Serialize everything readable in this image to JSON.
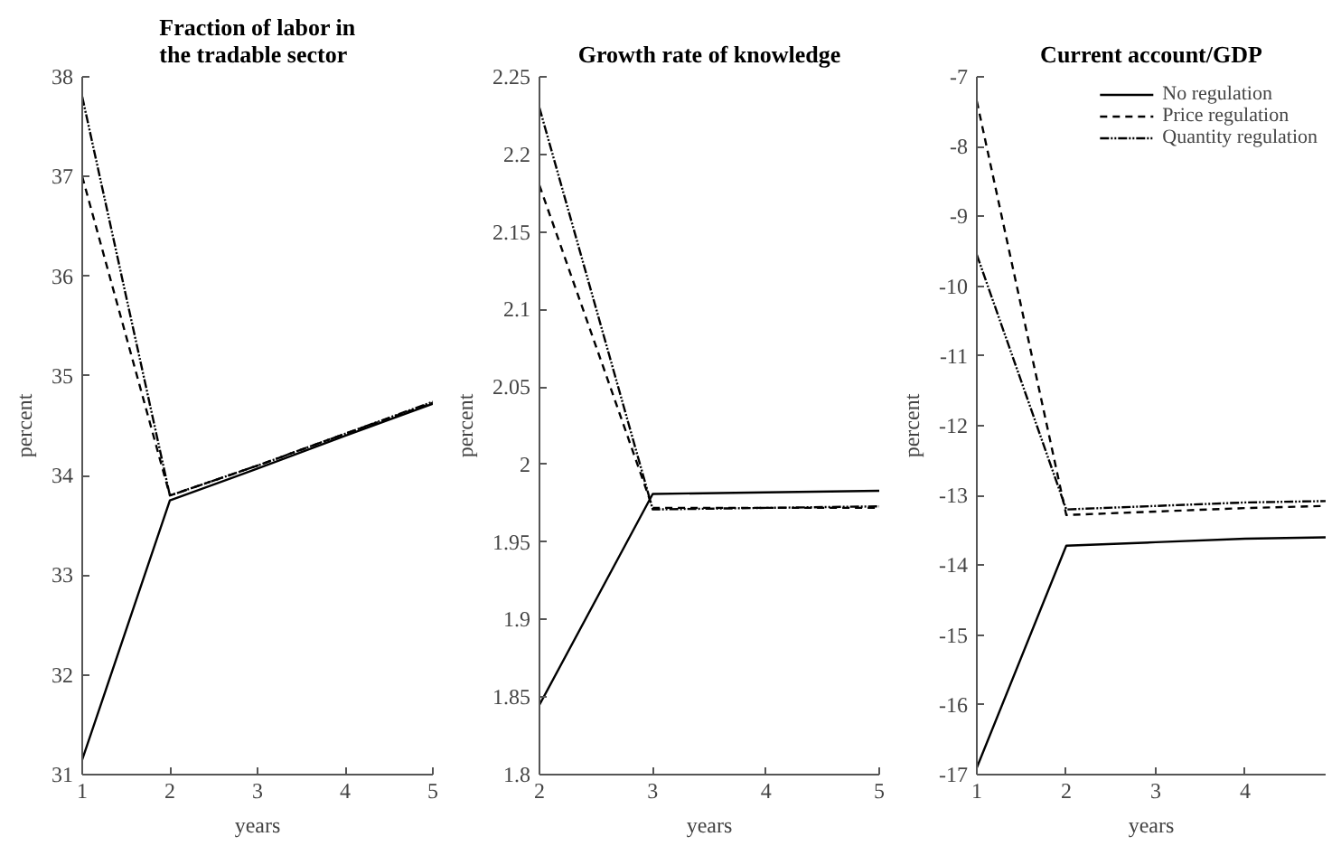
{
  "chart_data": [
    {
      "type": "line",
      "title": "Fraction of labor in\nthe tradable sector",
      "xlabel": "years",
      "ylabel": "percent",
      "xlim": [
        1,
        5
      ],
      "ylim": [
        31,
        38
      ],
      "xticks": [
        1,
        2,
        3,
        4,
        5
      ],
      "yticks": [
        31,
        32,
        33,
        34,
        35,
        36,
        37,
        38
      ],
      "grid": false,
      "legend": false,
      "x": [
        1,
        2,
        3,
        4,
        5
      ],
      "series": [
        {
          "color": "#000000",
          "line_style": "solid",
          "values": [
            31.15,
            33.75,
            34.07,
            34.4,
            34.72
          ]
        },
        {
          "color": "#000000",
          "line_style": "dashed",
          "values": [
            37.0,
            33.8,
            34.1,
            34.42,
            34.73
          ]
        },
        {
          "color": "#000000",
          "line_style": "dashdot",
          "values": [
            37.8,
            33.8,
            34.1,
            34.42,
            34.74
          ]
        }
      ]
    },
    {
      "type": "line",
      "title": "Growth rate of knowledge",
      "xlabel": "years",
      "ylabel": "percent",
      "xlim": [
        2,
        5
      ],
      "ylim": [
        1.8,
        2.25
      ],
      "xticks": [
        2,
        3,
        4,
        5
      ],
      "yticks": [
        1.8,
        1.85,
        1.9,
        1.95,
        2,
        2.05,
        2.1,
        2.15,
        2.2,
        2.25
      ],
      "grid": false,
      "legend": false,
      "x": [
        2,
        3,
        4,
        5
      ],
      "series": [
        {
          "color": "#000000",
          "line_style": "solid",
          "values": [
            1.845,
            1.981,
            1.982,
            1.983
          ]
        },
        {
          "color": "#000000",
          "line_style": "dashed",
          "values": [
            2.18,
            1.972,
            1.972,
            1.972
          ]
        },
        {
          "color": "#000000",
          "line_style": "dashdot",
          "values": [
            2.23,
            1.971,
            1.972,
            1.973
          ]
        }
      ]
    },
    {
      "type": "line",
      "title": "Current account/GDP",
      "xlabel": "years",
      "ylabel": "percent",
      "xlim": [
        1,
        4.9
      ],
      "ylim": [
        -17,
        -7
      ],
      "xticks": [
        1,
        2,
        3,
        4
      ],
      "yticks": [
        -17,
        -16,
        -15,
        -14,
        -13,
        -12,
        -11,
        -10,
        -9,
        -8,
        -7
      ],
      "grid": false,
      "legend": "top right",
      "x": [
        1,
        2,
        3,
        4,
        4.9
      ],
      "series": [
        {
          "name": "No regulation",
          "color": "#000000",
          "line_style": "solid",
          "values": [
            -16.9,
            -13.72,
            -13.67,
            -13.62,
            -13.6
          ]
        },
        {
          "name": "Price regulation",
          "color": "#000000",
          "line_style": "dashed",
          "values": [
            -7.35,
            -13.28,
            -13.23,
            -13.18,
            -13.15
          ]
        },
        {
          "name": "Quantity regulation",
          "color": "#000000",
          "line_style": "dashdot",
          "values": [
            -9.55,
            -13.2,
            -13.15,
            -13.1,
            -13.08
          ]
        }
      ]
    }
  ]
}
